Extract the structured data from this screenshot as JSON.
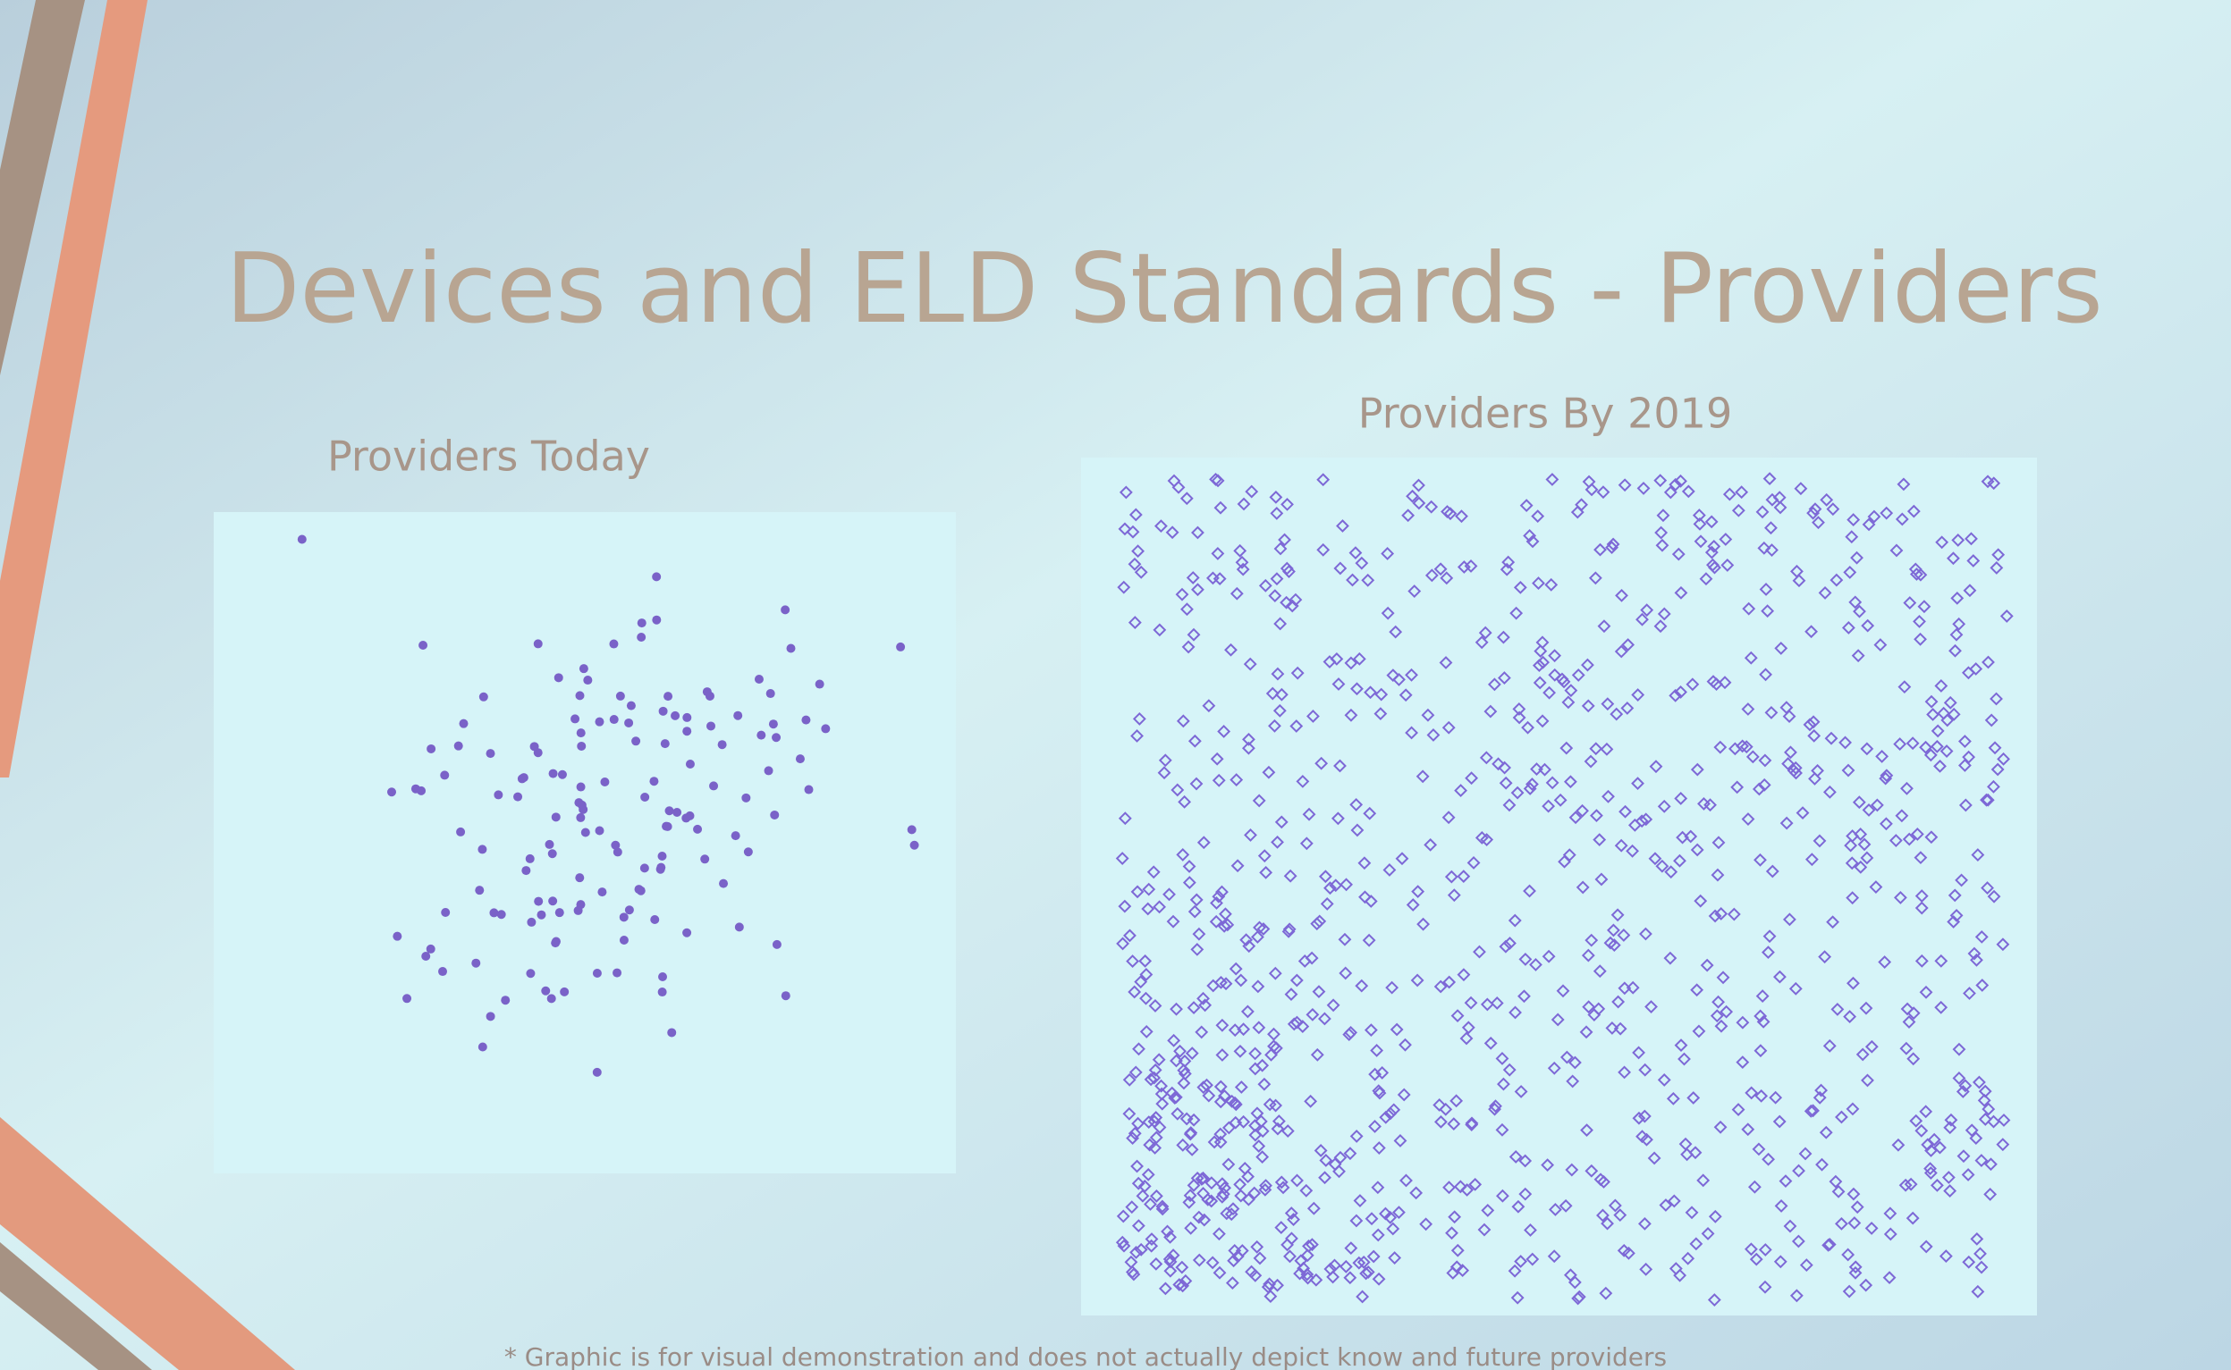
{
  "slide": {
    "title": "Devices and ELD Standards - Providers",
    "panels": [
      {
        "title": "Providers Today"
      },
      {
        "title": "Providers By 2019"
      }
    ],
    "footnote": "* Graphic is for visual demonstration and does not actually depict know and future providers"
  }
}
